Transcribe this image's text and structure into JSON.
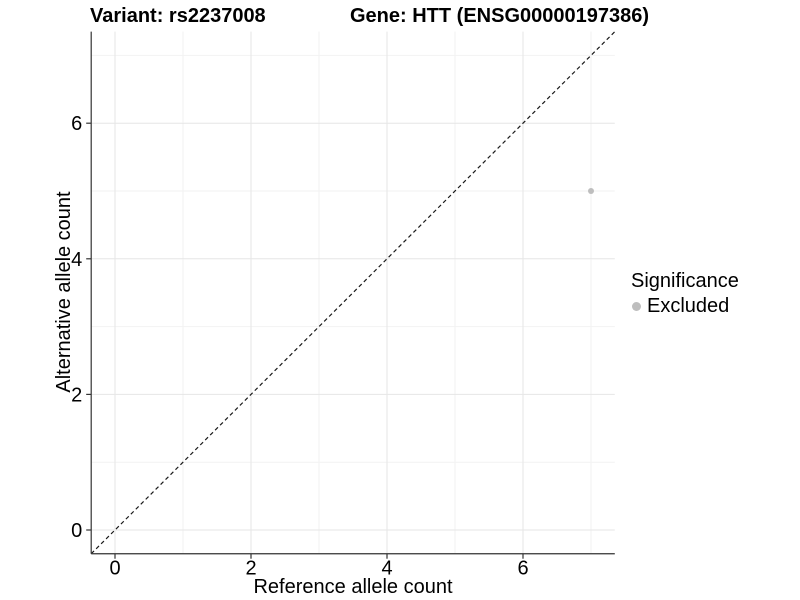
{
  "chart_data": {
    "type": "scatter",
    "title_left": "Variant: rs2237008",
    "title_right": "Gene: HTT (ENSG00000197386)",
    "xlabel": "Reference allele count",
    "ylabel": "Alternative allele count",
    "xlim": [
      -0.35,
      7.35
    ],
    "ylim": [
      -0.35,
      7.35
    ],
    "x_major_ticks": [
      0,
      2,
      4,
      6
    ],
    "y_major_ticks": [
      0,
      2,
      4,
      6
    ],
    "x_minor_ticks": [
      1,
      3,
      5,
      7
    ],
    "y_minor_ticks": [
      1,
      3,
      5,
      7
    ],
    "grid": true,
    "reference_line": {
      "type": "identity",
      "style": "dashed",
      "color": "#1a1a1a"
    },
    "series": [
      {
        "name": "Excluded",
        "color": "#bebebe",
        "points": [
          {
            "x": 7,
            "y": 5
          }
        ]
      }
    ],
    "legend": {
      "title": "Significance",
      "position": "right",
      "items": [
        {
          "label": "Excluded",
          "color": "#bebebe"
        }
      ]
    },
    "colors": {
      "grid_major": "#e6e6e6",
      "grid_minor": "#f2f2f2",
      "axis_line": "#333333",
      "tick": "#333333",
      "text": "#000000"
    }
  }
}
